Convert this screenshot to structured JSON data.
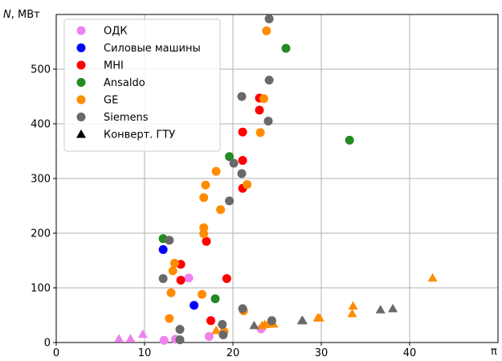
{
  "chart_data": {
    "type": "scatter",
    "title": "",
    "ylabel_prefix": "N",
    "ylabel_suffix": ", МВт",
    "xlabel": "π",
    "xlim": [
      0,
      50
    ],
    "ylim": [
      0,
      600
    ],
    "xticks": [
      "0",
      "10",
      "20",
      "30",
      "40"
    ],
    "yticks": [
      "0",
      "100",
      "200",
      "300",
      "400",
      "500"
    ],
    "grid": true,
    "legend_position": "top-left",
    "colors": {
      "ОДК": "#ee82ee",
      "Силовые машины": "#0000ff",
      "MHI": "#ff0000",
      "Ansaldo": "#228b22",
      "GE": "#ff8c00",
      "Siemens": "#696969",
      "Конверт. ГТУ": "#000000"
    },
    "legend": [
      {
        "name": "ОДК",
        "marker": "circle",
        "color": "#ee82ee"
      },
      {
        "name": "Силовые машины",
        "marker": "circle",
        "color": "#0000ff"
      },
      {
        "name": "MHI",
        "marker": "circle",
        "color": "#ff0000"
      },
      {
        "name": "Ansaldo",
        "marker": "circle",
        "color": "#228b22"
      },
      {
        "name": "GE",
        "marker": "circle",
        "color": "#ff8c00"
      },
      {
        "name": "Siemens",
        "marker": "circle",
        "color": "#696969"
      },
      {
        "name": "Конверт. ГТУ",
        "marker": "triangle",
        "color": "#000000"
      }
    ],
    "series": [
      {
        "name": "ОДК",
        "marker": "circle",
        "color": "#ee82ee",
        "points": [
          [
            12.2,
            4
          ],
          [
            13.5,
            6
          ],
          [
            15.0,
            118
          ],
          [
            17.3,
            11
          ],
          [
            23.2,
            25
          ]
        ]
      },
      {
        "name": "ОДК",
        "marker": "triangle",
        "color": "#ee82ee",
        "points": [
          [
            7.1,
            7
          ],
          [
            8.4,
            7
          ],
          [
            9.8,
            15
          ]
        ]
      },
      {
        "name": "Силовые машины",
        "marker": "circle",
        "color": "#0000ff",
        "points": [
          [
            12.1,
            170
          ],
          [
            15.6,
            68
          ]
        ]
      },
      {
        "name": "MHI",
        "marker": "circle",
        "color": "#ff0000",
        "points": [
          [
            14.1,
            143
          ],
          [
            14.1,
            114
          ],
          [
            17.0,
            185
          ],
          [
            17.5,
            40
          ],
          [
            19.3,
            117
          ],
          [
            21.1,
            385
          ],
          [
            21.1,
            333
          ],
          [
            21.1,
            282
          ],
          [
            23.0,
            447
          ],
          [
            23.0,
            425
          ]
        ]
      },
      {
        "name": "Ansaldo",
        "marker": "circle",
        "color": "#228b22",
        "points": [
          [
            12.1,
            190
          ],
          [
            18.0,
            80
          ],
          [
            19.6,
            340
          ],
          [
            26.0,
            538
          ],
          [
            33.2,
            370
          ]
        ]
      },
      {
        "name": "GE",
        "marker": "circle",
        "color": "#ff8c00",
        "points": [
          [
            12.8,
            44
          ],
          [
            13.0,
            91
          ],
          [
            13.2,
            131
          ],
          [
            13.4,
            145
          ],
          [
            16.5,
            88
          ],
          [
            16.7,
            210
          ],
          [
            16.7,
            199
          ],
          [
            16.7,
            265
          ],
          [
            16.9,
            288
          ],
          [
            18.1,
            313
          ],
          [
            18.6,
            243
          ],
          [
            19.0,
            20
          ],
          [
            21.2,
            58
          ],
          [
            21.6,
            289
          ],
          [
            23.1,
            384
          ],
          [
            23.5,
            446
          ],
          [
            23.8,
            570
          ]
        ]
      },
      {
        "name": "GE",
        "marker": "triangle",
        "color": "#ff8c00",
        "points": [
          [
            18.1,
            22
          ],
          [
            23.3,
            31
          ],
          [
            23.6,
            33
          ],
          [
            24.0,
            34
          ],
          [
            24.6,
            34
          ],
          [
            29.6,
            45
          ],
          [
            29.8,
            45
          ],
          [
            33.5,
            53
          ],
          [
            33.6,
            67
          ],
          [
            42.6,
            118
          ]
        ]
      },
      {
        "name": "Siemens",
        "marker": "circle",
        "color": "#696969",
        "points": [
          [
            12.1,
            117
          ],
          [
            12.8,
            187
          ],
          [
            14.0,
            5
          ],
          [
            14.0,
            24
          ],
          [
            18.8,
            33
          ],
          [
            18.9,
            14
          ],
          [
            19.6,
            259
          ],
          [
            20.1,
            328
          ],
          [
            21.0,
            450
          ],
          [
            21.0,
            309
          ],
          [
            21.1,
            62
          ],
          [
            24.0,
            405
          ],
          [
            24.1,
            480
          ],
          [
            24.1,
            592
          ],
          [
            24.4,
            40
          ]
        ]
      },
      {
        "name": "Siemens",
        "marker": "triangle",
        "color": "#696969",
        "points": [
          [
            22.4,
            31
          ],
          [
            27.8,
            40
          ],
          [
            27.9,
            40
          ],
          [
            36.7,
            60
          ],
          [
            38.1,
            62
          ]
        ]
      }
    ]
  }
}
